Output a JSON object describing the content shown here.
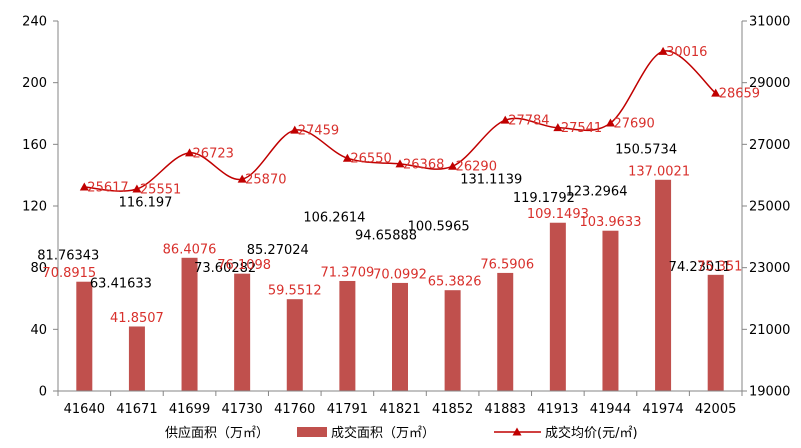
{
  "chart_data": {
    "type": "bar",
    "combo": [
      "bar",
      "line"
    ],
    "categories": [
      "41640",
      "41671",
      "41699",
      "41730",
      "41760",
      "41791",
      "41821",
      "41852",
      "41883",
      "41913",
      "41944",
      "41974",
      "42005"
    ],
    "series": [
      {
        "name": "供应面积（万㎡）",
        "type": "label",
        "axis": "left",
        "values": [
          81.76343,
          63.41633,
          116.197,
          73.60282,
          85.27024,
          106.2614,
          94.65888,
          100.5965,
          131.1139,
          119.1792,
          123.2964,
          150.5734,
          74.23011
        ]
      },
      {
        "name": "成交面积（万㎡）",
        "type": "bar",
        "axis": "left",
        "values": [
          70.8915,
          41.8507,
          86.4076,
          76.1098,
          59.5512,
          71.3709,
          70.0992,
          65.3826,
          76.5906,
          109.1493,
          103.9633,
          137.0021,
          75.351
        ]
      },
      {
        "name": "成交均价(元/㎡)",
        "type": "line",
        "axis": "right",
        "smooth": true,
        "marker": "triangle",
        "values": [
          25617,
          25551,
          26723,
          25870,
          27459,
          26550,
          26368,
          26290,
          27784,
          27541,
          27690,
          30016,
          28659
        ]
      }
    ],
    "y_left": {
      "range": [
        0,
        240
      ],
      "ticks": [
        "0",
        "40",
        "80",
        "120",
        "160",
        "200",
        "240"
      ]
    },
    "y_right": {
      "range": [
        19000,
        31000
      ],
      "ticks": [
        "19000",
        "21000",
        "23000",
        "25000",
        "27000",
        "29000",
        "31000"
      ]
    },
    "grid": false,
    "data_labels": true,
    "legend_position": "bottom",
    "colors": {
      "supply_labels": "#000000",
      "bar": "#C0504D",
      "bar_labels": "#D8302C",
      "line": "#C00000",
      "line_labels": "#D8302C",
      "axis": "#868686",
      "text": "#000000"
    }
  }
}
